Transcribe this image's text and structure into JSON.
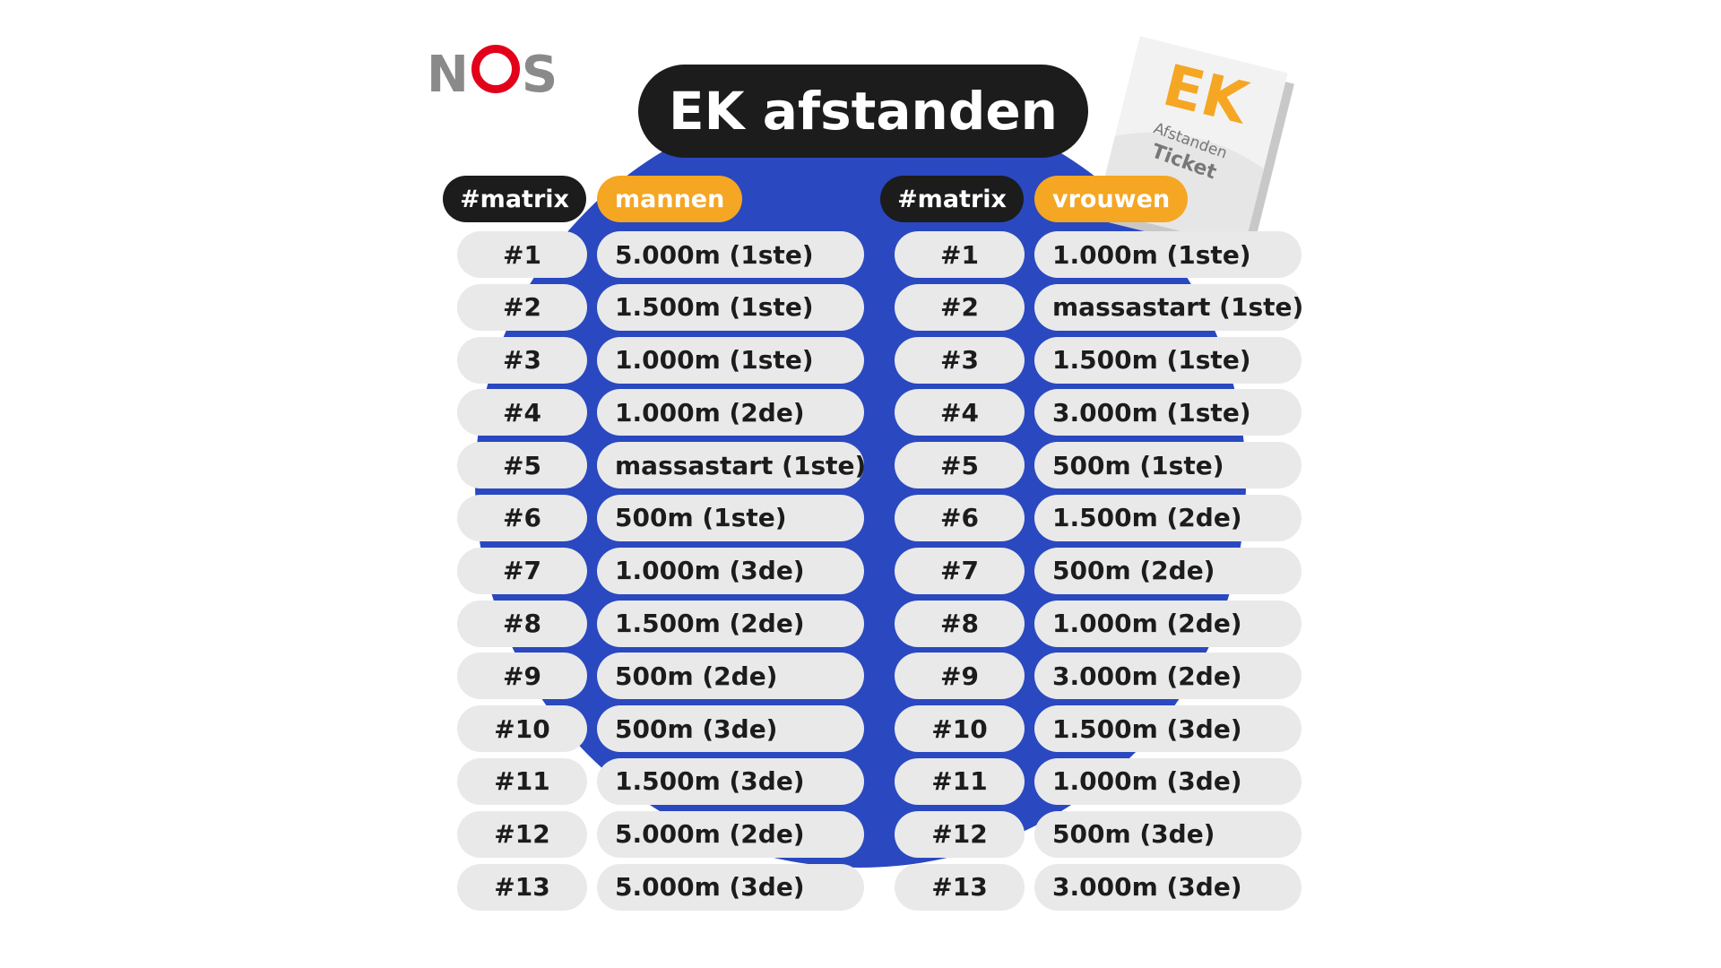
{
  "brand": {
    "logo_text_n": "N",
    "logo_text_s": "S"
  },
  "title": "EK afstanden",
  "ticket": {
    "big": "EK",
    "line1": "Afstanden",
    "line2": "Ticket"
  },
  "colors": {
    "blue": "#2a48c0",
    "orange": "#f5a623",
    "black": "#1c1c1c",
    "red": "#e2001a",
    "pill": "#e9e9e9"
  },
  "men": {
    "matrix_label": "#matrix",
    "group_label": "mannen",
    "rows": [
      {
        "num": "#1",
        "dist": "5.000m (1ste)"
      },
      {
        "num": "#2",
        "dist": "1.500m  (1ste)"
      },
      {
        "num": "#3",
        "dist": "1.000m  (1ste)"
      },
      {
        "num": "#4",
        "dist": "1.000m  (2de)"
      },
      {
        "num": "#5",
        "dist": "massastart (1ste)"
      },
      {
        "num": "#6",
        "dist": "500m (1ste)"
      },
      {
        "num": "#7",
        "dist": "1.000m (3de)"
      },
      {
        "num": "#8",
        "dist": "1.500m (2de)"
      },
      {
        "num": "#9",
        "dist": "500m (2de)"
      },
      {
        "num": "#10",
        "dist": "500m (3de)"
      },
      {
        "num": "#11",
        "dist": "1.500m (3de)"
      },
      {
        "num": "#12",
        "dist": "5.000m (2de)"
      },
      {
        "num": "#13",
        "dist": "5.000m (3de)"
      }
    ]
  },
  "women": {
    "matrix_label": "#matrix",
    "group_label": "vrouwen",
    "rows": [
      {
        "num": "#1",
        "dist": "1.000m (1ste)"
      },
      {
        "num": "#2",
        "dist": "massastart (1ste)"
      },
      {
        "num": "#3",
        "dist": "1.500m  (1ste)"
      },
      {
        "num": "#4",
        "dist": "3.000m  (1ste)"
      },
      {
        "num": "#5",
        "dist": "500m (1ste)"
      },
      {
        "num": "#6",
        "dist": "1.500m (2de)"
      },
      {
        "num": "#7",
        "dist": "500m (2de)"
      },
      {
        "num": "#8",
        "dist": "1.000m (2de)"
      },
      {
        "num": "#9",
        "dist": "3.000m (2de)"
      },
      {
        "num": "#10",
        "dist": "1.500m (3de)"
      },
      {
        "num": "#11",
        "dist": "1.000m (3de)"
      },
      {
        "num": "#12",
        "dist": "500m (3de)"
      },
      {
        "num": "#13",
        "dist": "3.000m (3de)"
      }
    ]
  }
}
